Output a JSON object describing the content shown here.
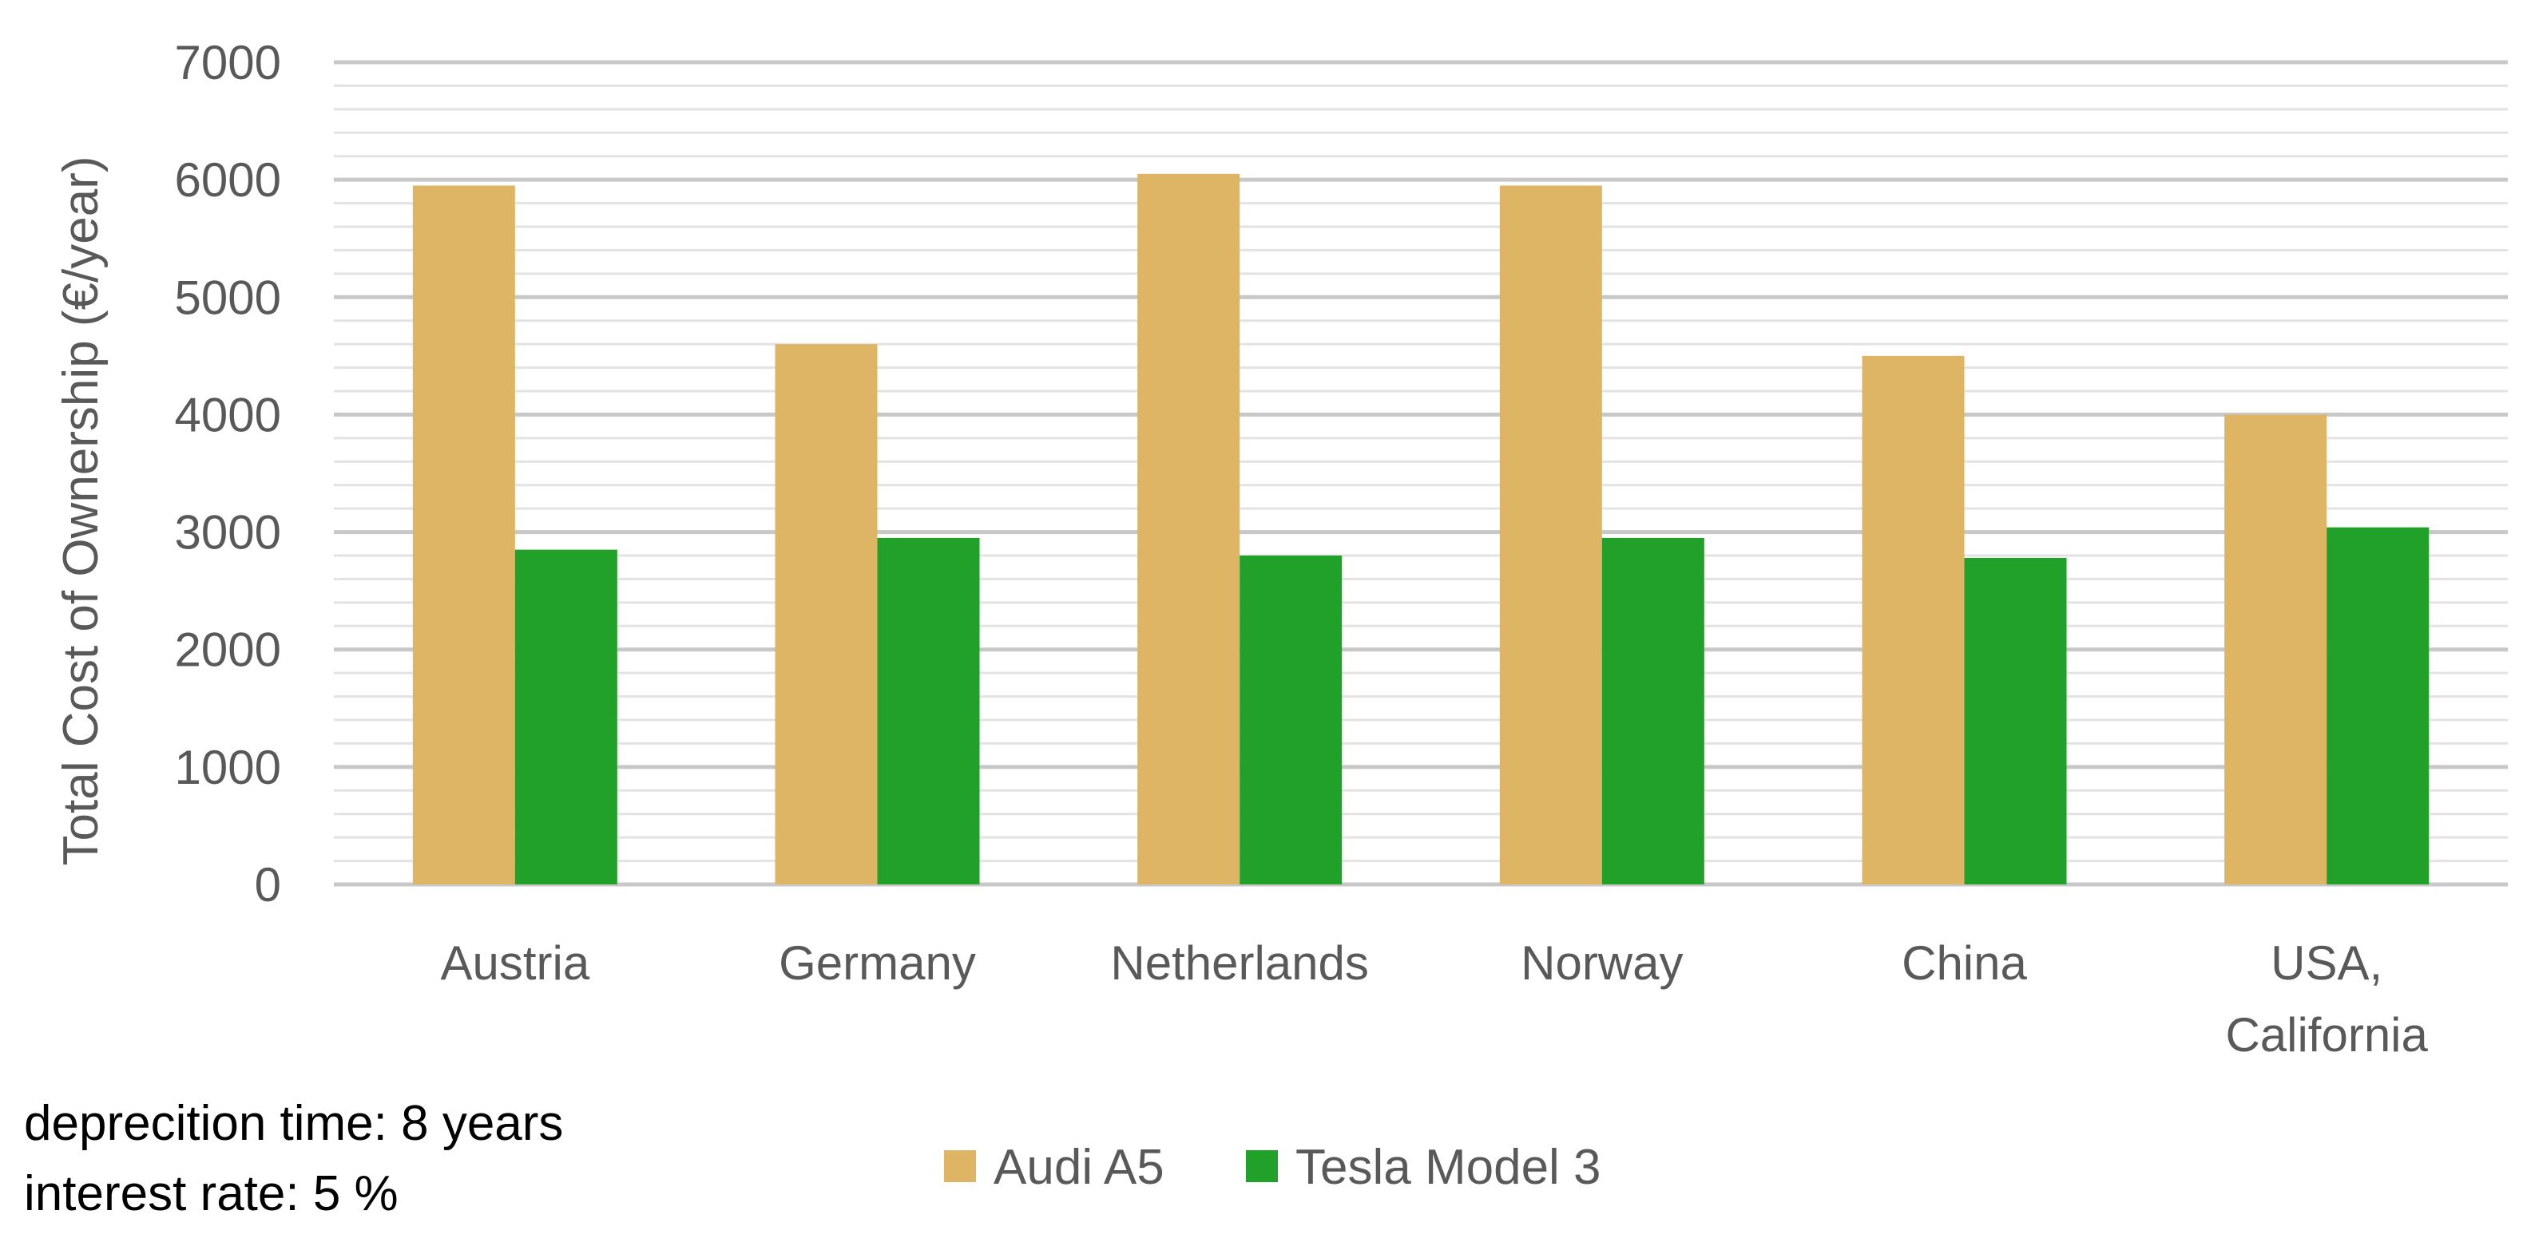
{
  "chart_data": {
    "type": "bar",
    "title": "",
    "xlabel": "",
    "ylabel": "Total Cost of Ownership (€/year)",
    "ylim": [
      0,
      7000
    ],
    "yticks": [
      0,
      1000,
      2000,
      3000,
      4000,
      5000,
      6000,
      7000
    ],
    "minor_gridlines": true,
    "grid": true,
    "legend_position": "bottom",
    "categories": [
      "Austria",
      "Germany",
      "Netherlands",
      "Norway",
      "China",
      "USA, California"
    ],
    "category_lines": [
      [
        "Austria"
      ],
      [
        "Germany"
      ],
      [
        "Netherlands"
      ],
      [
        "Norway"
      ],
      [
        "China"
      ],
      [
        "USA,",
        "California"
      ]
    ],
    "series": [
      {
        "name": "Audi A5",
        "color": "#DDB565",
        "values": [
          5950,
          4600,
          6050,
          5950,
          4500,
          4000
        ]
      },
      {
        "name": "Tesla Model 3",
        "color": "#22A12A",
        "values": [
          2850,
          2950,
          2800,
          2950,
          2780,
          3040
        ]
      }
    ]
  },
  "notes": {
    "depreciation": "deprecition time: 8 years",
    "interest": "interest rate: 5 %"
  }
}
